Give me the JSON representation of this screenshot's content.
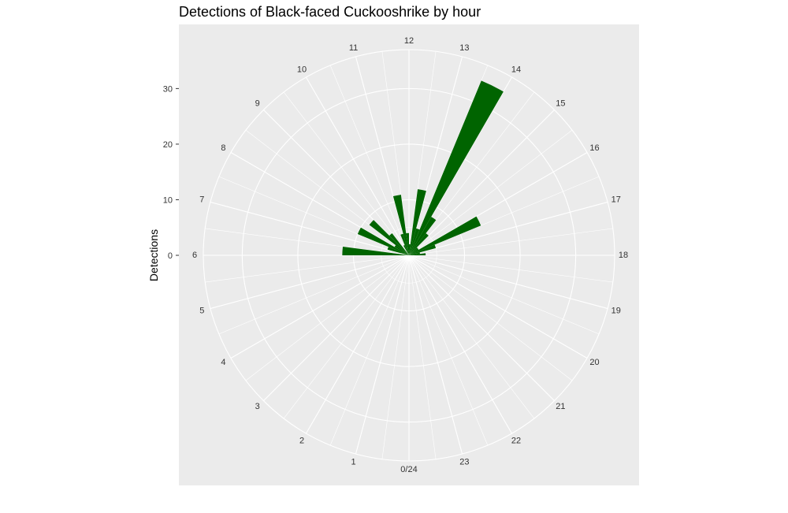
{
  "chart_data": {
    "type": "bar",
    "coord": "polar",
    "title": "Detections of Black-faced Cuckooshrike by hour",
    "xlabel": "",
    "ylabel": "Detections",
    "hour_labels": [
      "0/24",
      "1",
      "2",
      "3",
      "4",
      "5",
      "6",
      "7",
      "8",
      "9",
      "10",
      "11",
      "12",
      "13",
      "14",
      "15",
      "16",
      "17",
      "18",
      "19",
      "20",
      "21",
      "22",
      "23"
    ],
    "y_ticks": [
      0,
      10,
      20,
      30
    ],
    "ylim": [
      0,
      37
    ],
    "bin_width_hours": 0.5,
    "grid": true,
    "legend": "none",
    "bar_color": "#006400",
    "panel_color": "#EBEBEB",
    "grid_color": "#FFFFFF",
    "series": [
      {
        "bins": [
          {
            "hour": 6.0,
            "value": 12
          },
          {
            "hour": 6.5,
            "value": 0
          },
          {
            "hour": 7.0,
            "value": 4
          },
          {
            "hour": 7.5,
            "value": 10
          },
          {
            "hour": 8.0,
            "value": 3
          },
          {
            "hour": 8.5,
            "value": 9
          },
          {
            "hour": 9.0,
            "value": 5
          },
          {
            "hour": 9.5,
            "value": 0
          },
          {
            "hour": 10.0,
            "value": 2
          },
          {
            "hour": 10.5,
            "value": 4
          },
          {
            "hour": 11.0,
            "value": 11
          },
          {
            "hour": 11.5,
            "value": 4
          },
          {
            "hour": 12.0,
            "value": 2
          },
          {
            "hour": 12.5,
            "value": 12
          },
          {
            "hour": 13.0,
            "value": 5
          },
          {
            "hour": 13.5,
            "value": 34
          },
          {
            "hour": 14.0,
            "value": 8
          },
          {
            "hour": 14.5,
            "value": 5
          },
          {
            "hour": 15.0,
            "value": 2
          },
          {
            "hour": 15.5,
            "value": 2
          },
          {
            "hour": 16.0,
            "value": 14
          },
          {
            "hour": 16.5,
            "value": 5
          },
          {
            "hour": 17.0,
            "value": 2
          },
          {
            "hour": 17.5,
            "value": 3
          }
        ]
      }
    ]
  }
}
